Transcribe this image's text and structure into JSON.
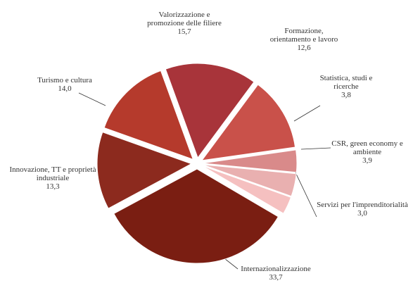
{
  "chart_data": {
    "type": "pie",
    "categories": [
      "Valorizzazione e promozione delle filiere",
      "Formazione, orientamento e lavoro",
      "Statistica, studi e ricerche",
      "CSR, green economy e ambiente",
      "Servizi per l'imprenditorialità",
      "Internazionalizzazione",
      "Innovazione, TT e proprietà industriale",
      "Turismo e cultura"
    ],
    "values": [
      15.7,
      12.6,
      3.8,
      3.9,
      3.0,
      33.7,
      13.3,
      14.0
    ],
    "value_labels": [
      "15,7",
      "12,6",
      "3,8",
      "3,9",
      "3,0",
      "33,7",
      "13,3",
      "14,0"
    ],
    "colors": [
      "#a8343a",
      "#c9514a",
      "#d98a8a",
      "#e9b0b0",
      "#f5c0c0",
      "#7a1e12",
      "#8c2a1e",
      "#b53a2c"
    ]
  }
}
